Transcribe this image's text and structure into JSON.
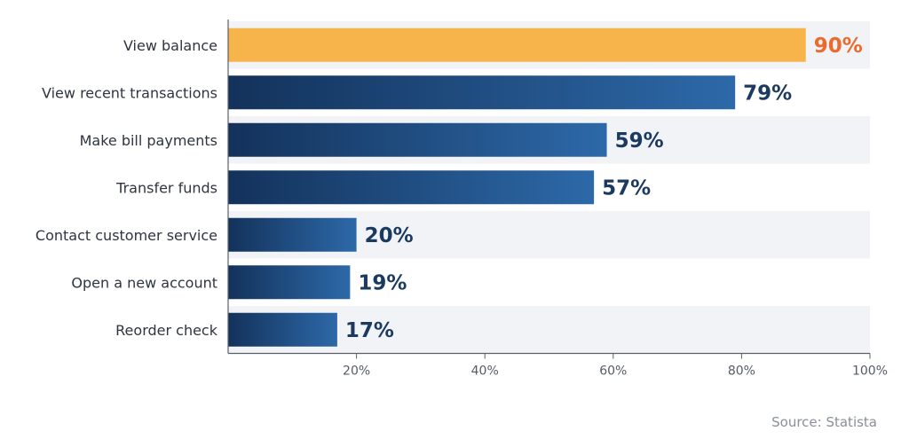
{
  "chart_data": {
    "type": "bar",
    "orientation": "horizontal",
    "categories": [
      "View balance",
      "View recent transactions",
      "Make bill payments",
      "Transfer funds",
      "Contact customer service",
      "Open a new account",
      "Reorder check"
    ],
    "values": [
      90,
      79,
      59,
      57,
      20,
      19,
      17
    ],
    "value_labels": [
      "90%",
      "79%",
      "59%",
      "57%",
      "20%",
      "19%",
      "17%"
    ],
    "xlim": [
      0,
      100
    ],
    "xticks": [
      20,
      40,
      60,
      80,
      100
    ],
    "xtick_labels": [
      "20%",
      "40%",
      "60%",
      "80%",
      "100%"
    ],
    "grid": false,
    "highlight_index": 0,
    "colors": {
      "highlight_bar": "#f6b44b",
      "highlight_label": "#ec6a2c",
      "bar_dark": "#13325b",
      "bar_light": "#2d69a8",
      "value_label": "#1b3a5f",
      "band": "#f1f3f7",
      "axis": "#5b6068"
    }
  },
  "source": "Source: Statista"
}
